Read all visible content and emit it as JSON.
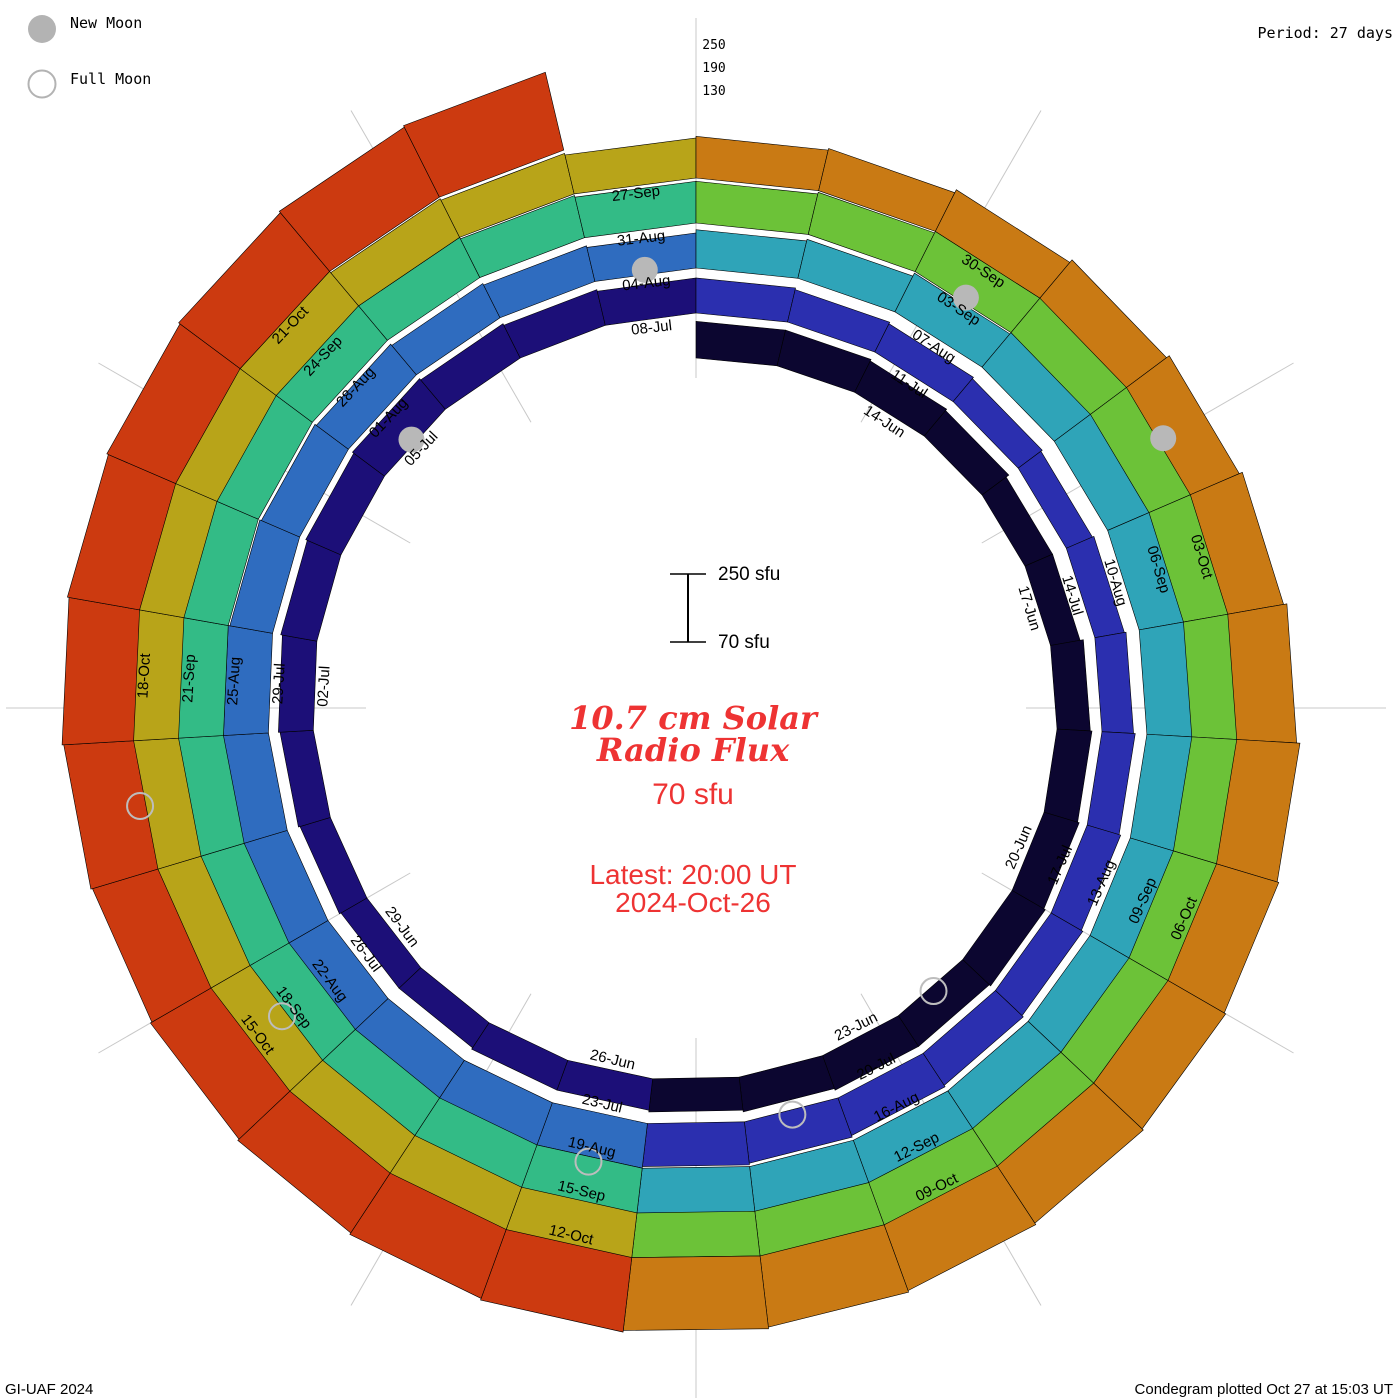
{
  "chart_data": {
    "type": "condegram-spiral",
    "title": "10.7 cm Solar Radio Flux",
    "center_level_text": "70 sfu",
    "latest_label": "Latest: 20:00 UT",
    "latest_date": "2024-Oct-26",
    "period_text": "Period: 27 days",
    "legend": {
      "new_moon": "New Moon",
      "full_moon": "Full Moon"
    },
    "scale_bar": {
      "top_label": "250 sfu",
      "bottom_label": "70 sfu",
      "min": 70,
      "max": 250
    },
    "radial_scale_labels": [
      "250",
      "190",
      "130"
    ],
    "credit": "GI-UAF 2024",
    "plotted_text": "Condegram plotted Oct 27 at 15:03 UT",
    "start_date": "2024-06-12",
    "end_date": "2024-10-26",
    "period_days": 27,
    "ring_colors": [
      "#0c0630",
      "#1c0f78",
      "#2b2faf",
      "#2f6cbf",
      "#2fa4b8",
      "#33bb86",
      "#6cc238",
      "#b8a419",
      "#c97a14",
      "#cc3a10"
    ],
    "date_labels": [
      "14-Jun",
      "17-Jun",
      "20-Jun",
      "23-Jun",
      "26-Jun",
      "29-Jun",
      "02-Jul",
      "05-Jul",
      "08-Jul",
      "11-Jul",
      "14-Jul",
      "17-Jul",
      "20-Jul",
      "23-Jul",
      "26-Jul",
      "29-Jul",
      "01-Aug",
      "04-Aug",
      "07-Aug",
      "10-Aug",
      "13-Aug",
      "16-Aug",
      "19-Aug",
      "22-Aug",
      "25-Aug",
      "28-Aug",
      "31-Aug",
      "03-Sep",
      "06-Sep",
      "09-Sep",
      "12-Sep",
      "15-Sep",
      "18-Sep",
      "21-Sep",
      "24-Sep",
      "27-Sep",
      "30-Sep",
      "03-Oct",
      "06-Oct",
      "09-Oct",
      "12-Oct",
      "15-Oct",
      "18-Oct",
      "21-Oct"
    ],
    "new_moons": [
      "2024-07-05",
      "2024-08-04",
      "2024-09-03",
      "2024-10-02"
    ],
    "full_moons": [
      "2024-06-22",
      "2024-07-21",
      "2024-08-19",
      "2024-09-18",
      "2024-10-17"
    ],
    "daily_flux_sfu": [
      180,
      180,
      175,
      170,
      160,
      160,
      170,
      175,
      180,
      185,
      180,
      180,
      175,
      170,
      165,
      165,
      160,
      160,
      165,
      170,
      175,
      180,
      185,
      190,
      185,
      180,
      175,
      175,
      170,
      165,
      160,
      155,
      160,
      165,
      170,
      175,
      180,
      185,
      190,
      195,
      200,
      205,
      210,
      215,
      220,
      215,
      210,
      205,
      200,
      195,
      190,
      185,
      180,
      175,
      185,
      190,
      200,
      210,
      220,
      230,
      235,
      240,
      245,
      240,
      235,
      230,
      225,
      220,
      215,
      220,
      225,
      230,
      235,
      230,
      225,
      220,
      215,
      210,
      205,
      200,
      195,
      195,
      200,
      205,
      215,
      225,
      235,
      240,
      235,
      230,
      225,
      220,
      215,
      210,
      205,
      210,
      215,
      220,
      225,
      230,
      225,
      220,
      215,
      210,
      205,
      200,
      195,
      190,
      195,
      200,
      210,
      220,
      230,
      240,
      250,
      260,
      265,
      270,
      275,
      280,
      285,
      290,
      295,
      290,
      285,
      280,
      275,
      280,
      285,
      290,
      295,
      300,
      305,
      310
    ]
  }
}
